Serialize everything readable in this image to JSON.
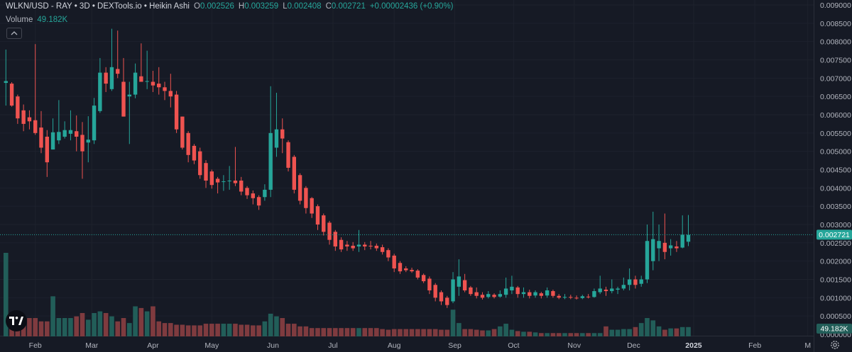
{
  "header": {
    "symbol": "WLKN/USD - RAY • 3D • DEXTools.io • Heikin Ashi",
    "o_label": "O",
    "o_value": "0.002526",
    "h_label": "H",
    "h_value": "0.003259",
    "l_label": "L",
    "l_value": "0.002408",
    "c_label": "C",
    "c_value": "0.002721",
    "change": "+0.00002436 (+0.90%)"
  },
  "volume": {
    "label": "Volume",
    "value": "49.182K"
  },
  "icons": {
    "collapse": "chevron-up-icon",
    "logo": "tradingview-logo-icon",
    "settings": "gear-icon"
  },
  "colors": {
    "up": "#26a69a",
    "down": "#ef5350",
    "up_volume": "#225e59",
    "down_volume": "#7f3b3f",
    "background": "#161a25",
    "last_price": "#26a69a"
  },
  "chart_data": {
    "type": "candlestick",
    "title": "WLKN/USD - RAY • 3D • DEXTools.io • Heikin Ashi",
    "price_axis": {
      "ticks": [
        "0.009000",
        "0.008500",
        "0.008000",
        "0.007500",
        "0.007000",
        "0.006500",
        "0.006000",
        "0.005500",
        "0.005000",
        "0.004500",
        "0.004000",
        "0.003500",
        "0.003000",
        "0.002500",
        "0.002000",
        "0.001500",
        "0.001000",
        "0.000500",
        "0.000000"
      ],
      "ylim": [
        0,
        0.0092
      ],
      "last_price": "0.002721",
      "volume_label": "49.182K"
    },
    "time_axis": {
      "labels": [
        {
          "label": "Feb",
          "t": 5
        },
        {
          "label": "Mar",
          "t": 14.6
        },
        {
          "label": "Apr",
          "t": 25
        },
        {
          "label": "May",
          "t": 35
        },
        {
          "label": "Jun",
          "t": 45.4
        },
        {
          "label": "Jul",
          "t": 55.6
        },
        {
          "label": "Aug",
          "t": 66
        },
        {
          "label": "Sep",
          "t": 76.3
        },
        {
          "label": "Oct",
          "t": 86.3
        },
        {
          "label": "Nov",
          "t": 96.6
        },
        {
          "label": "Dec",
          "t": 106.7
        },
        {
          "label": "2025",
          "t": 116.9
        },
        {
          "label": "Feb",
          "t": 127.3
        },
        {
          "label": "M",
          "t": 136.3
        }
      ],
      "range": [
        -1,
        137.3
      ]
    },
    "candles": [
      {
        "o": 0.00687,
        "h": 0.00778,
        "l": 0.00625,
        "c": 0.00692
      },
      {
        "o": 0.00685,
        "h": 0.00689,
        "l": 0.00622,
        "c": 0.00625
      },
      {
        "o": 0.0065,
        "h": 0.00655,
        "l": 0.00575,
        "c": 0.0059
      },
      {
        "o": 0.00612,
        "h": 0.00628,
        "l": 0.00555,
        "c": 0.00575
      },
      {
        "o": 0.00593,
        "h": 0.00612,
        "l": 0.0056,
        "c": 0.00582
      },
      {
        "o": 0.00585,
        "h": 0.00793,
        "l": 0.00545,
        "c": 0.0055
      },
      {
        "o": 0.00565,
        "h": 0.0061,
        "l": 0.00495,
        "c": 0.0051
      },
      {
        "o": 0.0054,
        "h": 0.00558,
        "l": 0.0043,
        "c": 0.0047
      },
      {
        "o": 0.00505,
        "h": 0.0059,
        "l": 0.00505,
        "c": 0.00552
      },
      {
        "o": 0.0053,
        "h": 0.0064,
        "l": 0.0052,
        "c": 0.00553
      },
      {
        "o": 0.0054,
        "h": 0.00582,
        "l": 0.00535,
        "c": 0.00558
      },
      {
        "o": 0.00548,
        "h": 0.00612,
        "l": 0.0053,
        "c": 0.00558
      },
      {
        "o": 0.00555,
        "h": 0.00598,
        "l": 0.005,
        "c": 0.0054
      },
      {
        "o": 0.00545,
        "h": 0.0058,
        "l": 0.00425,
        "c": 0.005
      },
      {
        "o": 0.00524,
        "h": 0.00596,
        "l": 0.0047,
        "c": 0.00532
      },
      {
        "o": 0.0053,
        "h": 0.00646,
        "l": 0.0052,
        "c": 0.00625
      },
      {
        "o": 0.0061,
        "h": 0.00755,
        "l": 0.00605,
        "c": 0.00715
      },
      {
        "o": 0.00715,
        "h": 0.0073,
        "l": 0.00662,
        "c": 0.00685
      },
      {
        "o": 0.0067,
        "h": 0.00835,
        "l": 0.00665,
        "c": 0.0073
      },
      {
        "o": 0.00725,
        "h": 0.0083,
        "l": 0.007,
        "c": 0.00712
      },
      {
        "o": 0.0069,
        "h": 0.00755,
        "l": 0.00595,
        "c": 0.00595
      },
      {
        "o": 0.0065,
        "h": 0.0069,
        "l": 0.0052,
        "c": 0.00655
      },
      {
        "o": 0.00655,
        "h": 0.0074,
        "l": 0.00645,
        "c": 0.00715
      },
      {
        "o": 0.00705,
        "h": 0.00795,
        "l": 0.0069,
        "c": 0.0069
      },
      {
        "o": 0.0069,
        "h": 0.00775,
        "l": 0.0067,
        "c": 0.00692
      },
      {
        "o": 0.0069,
        "h": 0.0072,
        "l": 0.00662,
        "c": 0.0068
      },
      {
        "o": 0.00685,
        "h": 0.0073,
        "l": 0.00655,
        "c": 0.00675
      },
      {
        "o": 0.00675,
        "h": 0.0069,
        "l": 0.0064,
        "c": 0.00665
      },
      {
        "o": 0.00665,
        "h": 0.00712,
        "l": 0.0062,
        "c": 0.0065
      },
      {
        "o": 0.00655,
        "h": 0.00665,
        "l": 0.0055,
        "c": 0.0056
      },
      {
        "o": 0.00595,
        "h": 0.00595,
        "l": 0.00505,
        "c": 0.0051
      },
      {
        "o": 0.0055,
        "h": 0.00555,
        "l": 0.0047,
        "c": 0.0049
      },
      {
        "o": 0.00515,
        "h": 0.0052,
        "l": 0.00465,
        "c": 0.00475
      },
      {
        "o": 0.005,
        "h": 0.0051,
        "l": 0.00425,
        "c": 0.00435
      },
      {
        "o": 0.00468,
        "h": 0.00476,
        "l": 0.004,
        "c": 0.0042
      },
      {
        "o": 0.00445,
        "h": 0.0045,
        "l": 0.00398,
        "c": 0.00408
      },
      {
        "o": 0.00425,
        "h": 0.0043,
        "l": 0.00385,
        "c": 0.00415
      },
      {
        "o": 0.00418,
        "h": 0.00435,
        "l": 0.00392,
        "c": 0.00418
      },
      {
        "o": 0.00418,
        "h": 0.0046,
        "l": 0.00395,
        "c": 0.0042
      },
      {
        "o": 0.0042,
        "h": 0.00512,
        "l": 0.00405,
        "c": 0.00413
      },
      {
        "o": 0.0042,
        "h": 0.0043,
        "l": 0.0038,
        "c": 0.0039
      },
      {
        "o": 0.004,
        "h": 0.00405,
        "l": 0.0037,
        "c": 0.0038
      },
      {
        "o": 0.00385,
        "h": 0.00393,
        "l": 0.00355,
        "c": 0.00372
      },
      {
        "o": 0.00375,
        "h": 0.0038,
        "l": 0.0034,
        "c": 0.00352
      },
      {
        "o": 0.00375,
        "h": 0.0041,
        "l": 0.00365,
        "c": 0.00395
      },
      {
        "o": 0.00395,
        "h": 0.00678,
        "l": 0.00375,
        "c": 0.0055
      },
      {
        "o": 0.0051,
        "h": 0.0066,
        "l": 0.00485,
        "c": 0.0056
      },
      {
        "o": 0.0056,
        "h": 0.0059,
        "l": 0.00495,
        "c": 0.00535
      },
      {
        "o": 0.00525,
        "h": 0.0053,
        "l": 0.00445,
        "c": 0.00455
      },
      {
        "o": 0.00485,
        "h": 0.0049,
        "l": 0.00385,
        "c": 0.00395
      },
      {
        "o": 0.00435,
        "h": 0.0044,
        "l": 0.00355,
        "c": 0.00365
      },
      {
        "o": 0.004,
        "h": 0.00405,
        "l": 0.0033,
        "c": 0.00345
      },
      {
        "o": 0.00372,
        "h": 0.00375,
        "l": 0.00318,
        "c": 0.0033
      },
      {
        "o": 0.0035,
        "h": 0.00355,
        "l": 0.00285,
        "c": 0.003
      },
      {
        "o": 0.00325,
        "h": 0.0033,
        "l": 0.0027,
        "c": 0.0028
      },
      {
        "o": 0.00305,
        "h": 0.0031,
        "l": 0.00245,
        "c": 0.00258
      },
      {
        "o": 0.0028,
        "h": 0.00285,
        "l": 0.00228,
        "c": 0.0024
      },
      {
        "o": 0.00258,
        "h": 0.00265,
        "l": 0.00225,
        "c": 0.00232
      },
      {
        "o": 0.00245,
        "h": 0.00255,
        "l": 0.00228,
        "c": 0.0024
      },
      {
        "o": 0.00242,
        "h": 0.00252,
        "l": 0.00228,
        "c": 0.00235
      },
      {
        "o": 0.0024,
        "h": 0.00285,
        "l": 0.00225,
        "c": 0.00245
      },
      {
        "o": 0.00245,
        "h": 0.00252,
        "l": 0.0023,
        "c": 0.0024
      },
      {
        "o": 0.00242,
        "h": 0.00255,
        "l": 0.00232,
        "c": 0.0024
      },
      {
        "o": 0.00242,
        "h": 0.00248,
        "l": 0.00228,
        "c": 0.00235
      },
      {
        "o": 0.00238,
        "h": 0.00245,
        "l": 0.00218,
        "c": 0.00225
      },
      {
        "o": 0.0023,
        "h": 0.00235,
        "l": 0.002,
        "c": 0.0021
      },
      {
        "o": 0.00215,
        "h": 0.0022,
        "l": 0.0017,
        "c": 0.0018
      },
      {
        "o": 0.00195,
        "h": 0.002,
        "l": 0.00165,
        "c": 0.00172
      },
      {
        "o": 0.0018,
        "h": 0.00186,
        "l": 0.0017,
        "c": 0.00175
      },
      {
        "o": 0.00176,
        "h": 0.00182,
        "l": 0.00168,
        "c": 0.00172
      },
      {
        "o": 0.00174,
        "h": 0.00178,
        "l": 0.0015,
        "c": 0.00155
      },
      {
        "o": 0.00162,
        "h": 0.00166,
        "l": 0.0014,
        "c": 0.00145
      },
      {
        "o": 0.00152,
        "h": 0.00158,
        "l": 0.0011,
        "c": 0.0012
      },
      {
        "o": 0.00135,
        "h": 0.0014,
        "l": 0.0009,
        "c": 0.001
      },
      {
        "o": 0.00115,
        "h": 0.0012,
        "l": 0.0008,
        "c": 0.0009
      },
      {
        "o": 0.001,
        "h": 0.00105,
        "l": 0.00072,
        "c": 0.0008
      },
      {
        "o": 0.0009,
        "h": 0.0017,
        "l": 0.00085,
        "c": 0.0015
      },
      {
        "o": 0.0013,
        "h": 0.00205,
        "l": 0.00105,
        "c": 0.00158
      },
      {
        "o": 0.00148,
        "h": 0.00165,
        "l": 0.00115,
        "c": 0.0012
      },
      {
        "o": 0.00128,
        "h": 0.00132,
        "l": 0.00105,
        "c": 0.0011
      },
      {
        "o": 0.00115,
        "h": 0.00128,
        "l": 0.00098,
        "c": 0.00105
      },
      {
        "o": 0.00108,
        "h": 0.00115,
        "l": 0.00095,
        "c": 0.001
      },
      {
        "o": 0.00102,
        "h": 0.00118,
        "l": 0.00098,
        "c": 0.0011
      },
      {
        "o": 0.00108,
        "h": 0.00112,
        "l": 0.00098,
        "c": 0.00102
      },
      {
        "o": 0.00103,
        "h": 0.0012,
        "l": 0.001,
        "c": 0.0011
      },
      {
        "o": 0.00108,
        "h": 0.00155,
        "l": 0.001,
        "c": 0.00125
      },
      {
        "o": 0.0012,
        "h": 0.0016,
        "l": 0.0011,
        "c": 0.0013
      },
      {
        "o": 0.00128,
        "h": 0.00132,
        "l": 0.001,
        "c": 0.0011
      },
      {
        "o": 0.0011,
        "h": 0.00128,
        "l": 0.001,
        "c": 0.00115
      },
      {
        "o": 0.00115,
        "h": 0.00122,
        "l": 0.00098,
        "c": 0.00105
      },
      {
        "o": 0.00106,
        "h": 0.0012,
        "l": 0.001,
        "c": 0.00115
      },
      {
        "o": 0.00112,
        "h": 0.00116,
        "l": 0.00098,
        "c": 0.00105
      },
      {
        "o": 0.00106,
        "h": 0.00128,
        "l": 0.001,
        "c": 0.0012
      },
      {
        "o": 0.00118,
        "h": 0.00122,
        "l": 0.001,
        "c": 0.00105
      },
      {
        "o": 0.00105,
        "h": 0.0011,
        "l": 0.00096,
        "c": 0.001
      },
      {
        "o": 0.001,
        "h": 0.0011,
        "l": 0.00096,
        "c": 0.00102
      },
      {
        "o": 0.00102,
        "h": 0.00108,
        "l": 0.00096,
        "c": 0.001
      },
      {
        "o": 0.001,
        "h": 0.00106,
        "l": 0.00095,
        "c": 0.00098
      },
      {
        "o": 0.00099,
        "h": 0.00108,
        "l": 0.00096,
        "c": 0.00104
      },
      {
        "o": 0.00103,
        "h": 0.0011,
        "l": 0.00098,
        "c": 0.00102
      },
      {
        "o": 0.00102,
        "h": 0.00125,
        "l": 0.001,
        "c": 0.00118
      },
      {
        "o": 0.00115,
        "h": 0.0016,
        "l": 0.0011,
        "c": 0.00125
      },
      {
        "o": 0.00122,
        "h": 0.0013,
        "l": 0.00105,
        "c": 0.00118
      },
      {
        "o": 0.00118,
        "h": 0.0015,
        "l": 0.00112,
        "c": 0.00125
      },
      {
        "o": 0.00122,
        "h": 0.0013,
        "l": 0.0011,
        "c": 0.00125
      },
      {
        "o": 0.00125,
        "h": 0.00155,
        "l": 0.0012,
        "c": 0.00135
      },
      {
        "o": 0.00135,
        "h": 0.0018,
        "l": 0.0012,
        "c": 0.0015
      },
      {
        "o": 0.0015,
        "h": 0.0016,
        "l": 0.00125,
        "c": 0.00135
      },
      {
        "o": 0.00138,
        "h": 0.0016,
        "l": 0.0013,
        "c": 0.0015
      },
      {
        "o": 0.0015,
        "h": 0.003,
        "l": 0.0014,
        "c": 0.00255
      },
      {
        "o": 0.002,
        "h": 0.00335,
        "l": 0.00175,
        "c": 0.0026
      },
      {
        "o": 0.00235,
        "h": 0.003,
        "l": 0.002,
        "c": 0.00255
      },
      {
        "o": 0.0025,
        "h": 0.0033,
        "l": 0.00205,
        "c": 0.00225
      },
      {
        "o": 0.00235,
        "h": 0.0026,
        "l": 0.00215,
        "c": 0.00243
      },
      {
        "o": 0.0024,
        "h": 0.00255,
        "l": 0.00225,
        "c": 0.00235
      },
      {
        "o": 0.00237,
        "h": 0.00325,
        "l": 0.00235,
        "c": 0.00272
      },
      {
        "o": 0.00253,
        "h": 0.00326,
        "l": 0.00241,
        "c": 0.00272
      }
    ],
    "volume_series": {
      "name": "Volume",
      "note_units": "relative",
      "values": [
        250,
        70,
        55,
        55,
        55,
        55,
        45,
        45,
        120,
        55,
        55,
        55,
        60,
        70,
        50,
        70,
        75,
        70,
        60,
        45,
        55,
        40,
        90,
        85,
        75,
        90,
        45,
        40,
        40,
        35,
        35,
        33,
        33,
        33,
        38,
        38,
        38,
        38,
        38,
        38,
        35,
        35,
        33,
        33,
        45,
        68,
        60,
        55,
        38,
        38,
        30,
        30,
        25,
        25,
        25,
        25,
        25,
        25,
        25,
        25,
        25,
        25,
        25,
        25,
        22,
        20,
        22,
        22,
        22,
        22,
        22,
        22,
        22,
        22,
        20,
        20,
        80,
        40,
        22,
        22,
        20,
        18,
        18,
        22,
        30,
        38,
        20,
        16,
        14,
        14,
        12,
        10,
        10,
        10,
        10,
        10,
        10,
        10,
        10,
        10,
        10,
        10,
        30,
        20,
        20,
        22,
        22,
        28,
        40,
        55,
        48,
        30,
        20,
        24,
        24,
        28,
        28
      ],
      "last_label": "49.182K"
    }
  }
}
